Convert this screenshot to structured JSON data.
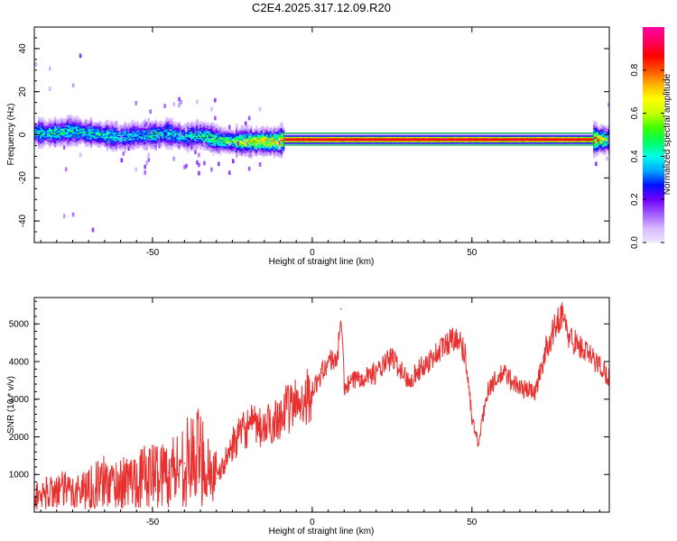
{
  "chart_data": [
    {
      "type": "heatmap",
      "title": "C2E4.2025.317.12.09.R20",
      "xlabel": "Height of straight line (km)",
      "ylabel": "Frequency (Hz)",
      "xlim": [
        -87,
        93
      ],
      "ylim": [
        -50,
        50
      ],
      "xticks": [
        -50,
        0,
        50
      ],
      "yticks": [
        -40,
        -20,
        0,
        20,
        40
      ],
      "grid": false,
      "colorbar": {
        "label": "Normalized spectral amplitude",
        "range": [
          0,
          1
        ],
        "ticks": [
          0.0,
          0.2,
          0.4,
          0.6,
          0.8
        ],
        "colormap": [
          "#f0e8ff",
          "#d7b8ff",
          "#a05cff",
          "#7000ff",
          "#0010ff",
          "#00a8ff",
          "#00ffe8",
          "#00ff60",
          "#40ff00",
          "#c8ff00",
          "#ffff00",
          "#ffb000",
          "#ff5000",
          "#ff0000",
          "#ff0060",
          "#ff00a0"
        ]
      },
      "series": [
        {
          "x": [
            -87,
            -80,
            -75,
            -70,
            -65,
            -60,
            -55,
            -50,
            -45,
            -40,
            -35,
            -30,
            -25,
            -20,
            -15,
            -10,
            -9,
            0,
            10,
            20,
            30,
            40,
            50,
            60,
            70,
            80,
            88,
            93
          ],
          "center_frequency": [
            1,
            1,
            2,
            1,
            0,
            -1,
            0,
            0,
            1,
            -1,
            0,
            -2,
            -3,
            -3,
            -3,
            -3,
            -2,
            -2,
            -2,
            -2,
            -2,
            -2,
            -2,
            -2,
            -2,
            -2,
            -2,
            -2
          ],
          "peak_amplitude": [
            0.45,
            0.5,
            0.45,
            0.5,
            0.5,
            0.45,
            0.4,
            0.5,
            0.45,
            0.45,
            0.5,
            0.55,
            0.6,
            0.7,
            0.75,
            0.75,
            0.98,
            0.98,
            0.98,
            0.98,
            0.98,
            0.98,
            0.98,
            0.98,
            0.98,
            0.98,
            0.95,
            0.5
          ]
        }
      ]
    },
    {
      "type": "line",
      "xlabel": "Height of straight line (km)",
      "ylabel": "SNR (10 * v/v)",
      "xlim": [
        -87,
        93
      ],
      "ylim": [
        0,
        5700
      ],
      "xticks": [
        -50,
        0,
        50
      ],
      "yticks": [
        1000,
        2000,
        3000,
        4000,
        5000
      ],
      "grid": false,
      "color": "#e8302f",
      "series": [
        {
          "x": [
            -87,
            -80,
            -75,
            -70,
            -65,
            -60,
            -55,
            -50,
            -45,
            -40,
            -35,
            -30,
            -28,
            -25,
            -20,
            -15,
            -10,
            -5,
            0,
            3,
            5,
            8,
            9,
            10,
            15,
            20,
            25,
            30,
            35,
            40,
            45,
            48,
            50,
            52,
            55,
            60,
            65,
            70,
            73,
            75,
            78,
            80,
            85,
            90,
            93
          ],
          "y": [
            400,
            600,
            550,
            650,
            800,
            750,
            900,
            1000,
            1050,
            1300,
            1500,
            900,
            1200,
            1800,
            2300,
            2200,
            2600,
            2900,
            3200,
            3700,
            4000,
            4100,
            5400,
            3300,
            3600,
            3700,
            4100,
            3500,
            3900,
            4300,
            4700,
            4200,
            2500,
            1800,
            3300,
            3700,
            3300,
            3200,
            4300,
            4700,
            5300,
            4700,
            4300,
            3900,
            3600
          ]
        }
      ]
    }
  ]
}
